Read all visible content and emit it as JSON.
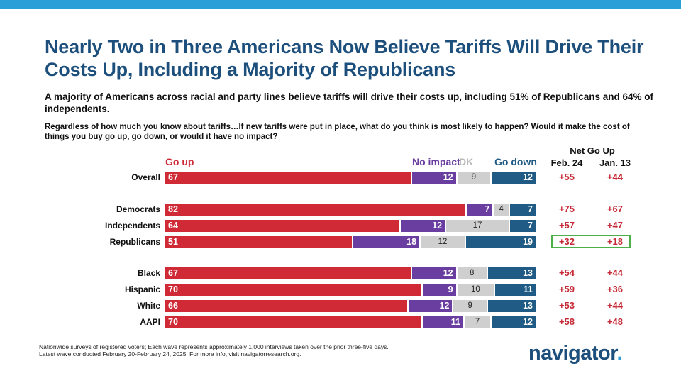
{
  "title": "Nearly Two in Three Americans Now Believe Tariffs Will Drive Their Costs Up, Including a Majority of Republicans",
  "subtitle": "A majority of Americans across racial and party lines believe tariffs will drive their costs up, including 51% of Republicans and 64% of independents.",
  "question": "Regardless of how much you know about tariffs…If new tariffs were put in place, what do you think is most likely to happen? Would it make the cost of things you buy go up, go down, or would it have no impact?",
  "net_header": "Net Go Up",
  "waves": [
    "Feb. 24",
    "Jan. 13"
  ],
  "colors": {
    "go_up": "#cf2a36",
    "no_impact": "#6a3ea1",
    "dk": "#cfcfcf",
    "go_down": "#1f5b85",
    "title": "#1d4f7c",
    "accent": "#2a9fd8",
    "highlight": "#4daf4a"
  },
  "chart_data": {
    "type": "bar",
    "stacked": true,
    "orientation": "horizontal",
    "categories": [
      "Overall",
      "Democrats",
      "Independents",
      "Republicans",
      "Black",
      "Hispanic",
      "White",
      "AAPI"
    ],
    "series": [
      {
        "name": "Go up",
        "values": [
          67,
          82,
          64,
          51,
          67,
          70,
          66,
          70
        ]
      },
      {
        "name": "No impact",
        "values": [
          12,
          7,
          12,
          18,
          12,
          9,
          12,
          11
        ]
      },
      {
        "name": "DK",
        "values": [
          9,
          4,
          17,
          12,
          8,
          10,
          9,
          7
        ]
      },
      {
        "name": "Go down",
        "values": [
          12,
          7,
          7,
          19,
          13,
          11,
          13,
          12
        ]
      }
    ],
    "net_go_up": {
      "Feb. 24": [
        "+55",
        "+75",
        "+57",
        "+32",
        "+54",
        "+59",
        "+53",
        "+58"
      ],
      "Jan. 13": [
        "+44",
        "+67",
        "+47",
        "+18",
        "+44",
        "+36",
        "+44",
        "+48"
      ]
    },
    "highlighted_row": "Republicans",
    "xlim": [
      0,
      100
    ]
  },
  "footnote": {
    "line1": "Nationwide surveys of registered voters; Each wave represents approximately 1,000 interviews taken over the prior three-five days.",
    "line2": "Latest wave conducted February 20-February 24, 2025. For more info, visit navigatorresearch.org."
  },
  "logo": {
    "text": "navigator",
    "dot": "."
  }
}
